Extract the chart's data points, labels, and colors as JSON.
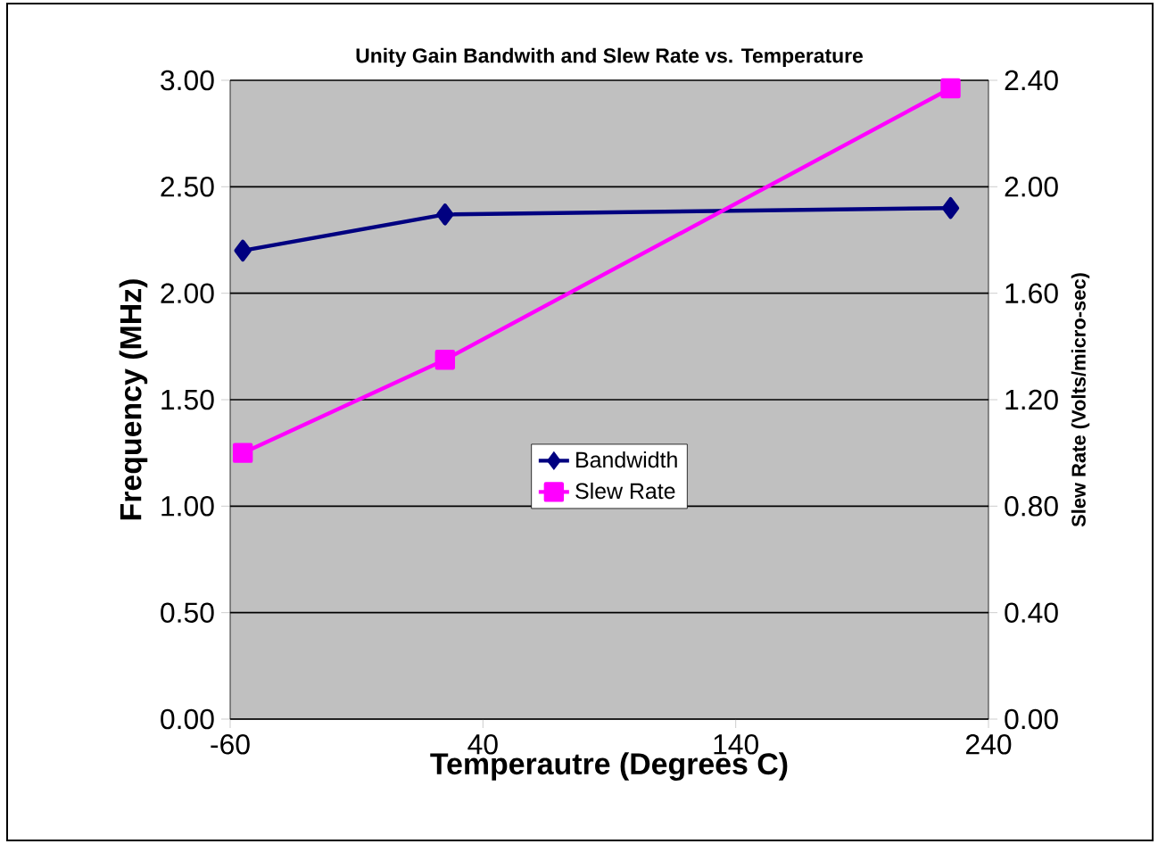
{
  "chart_data": {
    "type": "line",
    "title": "Unity Gain Bandwith and Slew Rate vs. Temperature",
    "xlabel": "Temperautre (Degrees C)",
    "ylabel": "Frequency (MHz)",
    "y2label": "Slew Rate (Volts/micro-sec)",
    "x": [
      -55,
      25,
      225
    ],
    "series": [
      {
        "name": "Bandwidth",
        "color": "#000080",
        "marker": "diamond",
        "values": [
          2.2,
          2.37,
          2.4
        ]
      },
      {
        "name": "Slew Rate",
        "color": "#ff00ff",
        "marker": "square",
        "axis": "y2",
        "values": [
          1.0,
          1.35,
          2.37
        ]
      }
    ],
    "xlim": [
      -60,
      240
    ],
    "xticks": [
      -60,
      40,
      140,
      240
    ],
    "ylim": [
      0,
      3
    ],
    "yticks": [
      {
        "value": 0,
        "label": "0.00"
      },
      {
        "value": 0.5,
        "label": "0.50"
      },
      {
        "value": 1,
        "label": "1.00"
      },
      {
        "value": 1.5,
        "label": "1.50"
      },
      {
        "value": 2,
        "label": "2.00"
      },
      {
        "value": 2.5,
        "label": "2.50"
      },
      {
        "value": 3,
        "label": "3.00"
      }
    ],
    "y2lim": [
      0,
      2.4
    ],
    "y2ticks": [
      {
        "value": 0,
        "label": "0.00"
      },
      {
        "value": 0.4,
        "label": "0.40"
      },
      {
        "value": 0.8,
        "label": "0.80"
      },
      {
        "value": 1.2,
        "label": "1.20"
      },
      {
        "value": 1.6,
        "label": "1.60"
      },
      {
        "value": 2.0,
        "label": "2.00"
      },
      {
        "value": 2.4,
        "label": "2.40"
      }
    ],
    "grid": "y",
    "legend": "center",
    "line_style": "solid"
  }
}
